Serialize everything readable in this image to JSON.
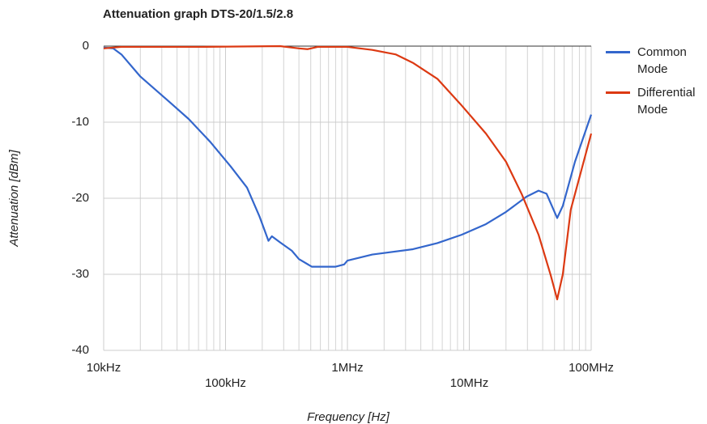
{
  "chart_data": {
    "type": "line",
    "title": "Attenuation graph DTS-20/1.5/2.8",
    "x_label": "Frequency [Hz]",
    "y_label": "Attenuation [dBm]",
    "x_log": true,
    "xlim": [
      10000,
      100000000
    ],
    "xticks": [
      {
        "value": 10000,
        "label": "10kHz"
      },
      {
        "value": 100000,
        "label": "100kHz"
      },
      {
        "value": 1000000,
        "label": "1MHz"
      },
      {
        "value": 10000000,
        "label": "10MHz"
      },
      {
        "value": 100000000,
        "label": "100MHz"
      }
    ],
    "xminorticks": [
      20000,
      30000,
      40000,
      50000,
      60000,
      70000,
      80000,
      90000,
      200000,
      300000,
      400000,
      500000,
      600000,
      700000,
      800000,
      900000,
      2000000,
      3000000,
      4000000,
      5000000,
      6000000,
      7000000,
      8000000,
      9000000,
      20000000,
      30000000,
      40000000,
      50000000,
      60000000,
      70000000,
      80000000,
      90000000
    ],
    "ylim": [
      -40,
      0
    ],
    "yticks": [
      -40,
      -30,
      -20,
      -10,
      0
    ],
    "grid": true,
    "legend": "right",
    "series": [
      {
        "name": "Common Mode",
        "color": "#3366cc",
        "x": [
          10000,
          12000,
          14000,
          20000,
          35000,
          50000,
          75000,
          110000,
          150000,
          190000,
          225000,
          240000,
          280000,
          350000,
          400000,
          510000,
          640000,
          800000,
          940000,
          1000000,
          1600000,
          3450000,
          5470000,
          8650000,
          13700000,
          20000000,
          29400000,
          37000000,
          43000000,
          52600000,
          58500000,
          73600000,
          100000000
        ],
        "values": [
          -0.2,
          -0.3,
          -1.1,
          -4.0,
          -7.4,
          -9.6,
          -12.6,
          -15.8,
          -18.6,
          -22.4,
          -25.6,
          -25.0,
          -25.8,
          -26.9,
          -28.0,
          -29.0,
          -29.0,
          -29.0,
          -28.7,
          -28.2,
          -27.4,
          -26.7,
          -25.9,
          -24.8,
          -23.4,
          -21.8,
          -19.8,
          -19.0,
          -19.4,
          -22.6,
          -21.0,
          -15.2,
          -9.0
        ]
      },
      {
        "name": "Differential Mode",
        "color": "#dc3912",
        "x": [
          10000,
          14000,
          65000,
          280000,
          400000,
          470000,
          570000,
          1000000,
          1600000,
          2500000,
          3450000,
          5470000,
          8650000,
          13700000,
          20000000,
          27000000,
          37000000,
          46500000,
          52600000,
          58500000,
          68000000,
          100000000
        ],
        "values": [
          -0.3,
          -0.1,
          -0.1,
          0,
          -0.3,
          -0.4,
          -0.1,
          -0.1,
          -0.5,
          -1.1,
          -2.2,
          -4.3,
          -7.8,
          -11.5,
          -15.2,
          -19.5,
          -24.8,
          -30.1,
          -33.3,
          -30.0,
          -21.5,
          -11.5
        ]
      }
    ]
  }
}
